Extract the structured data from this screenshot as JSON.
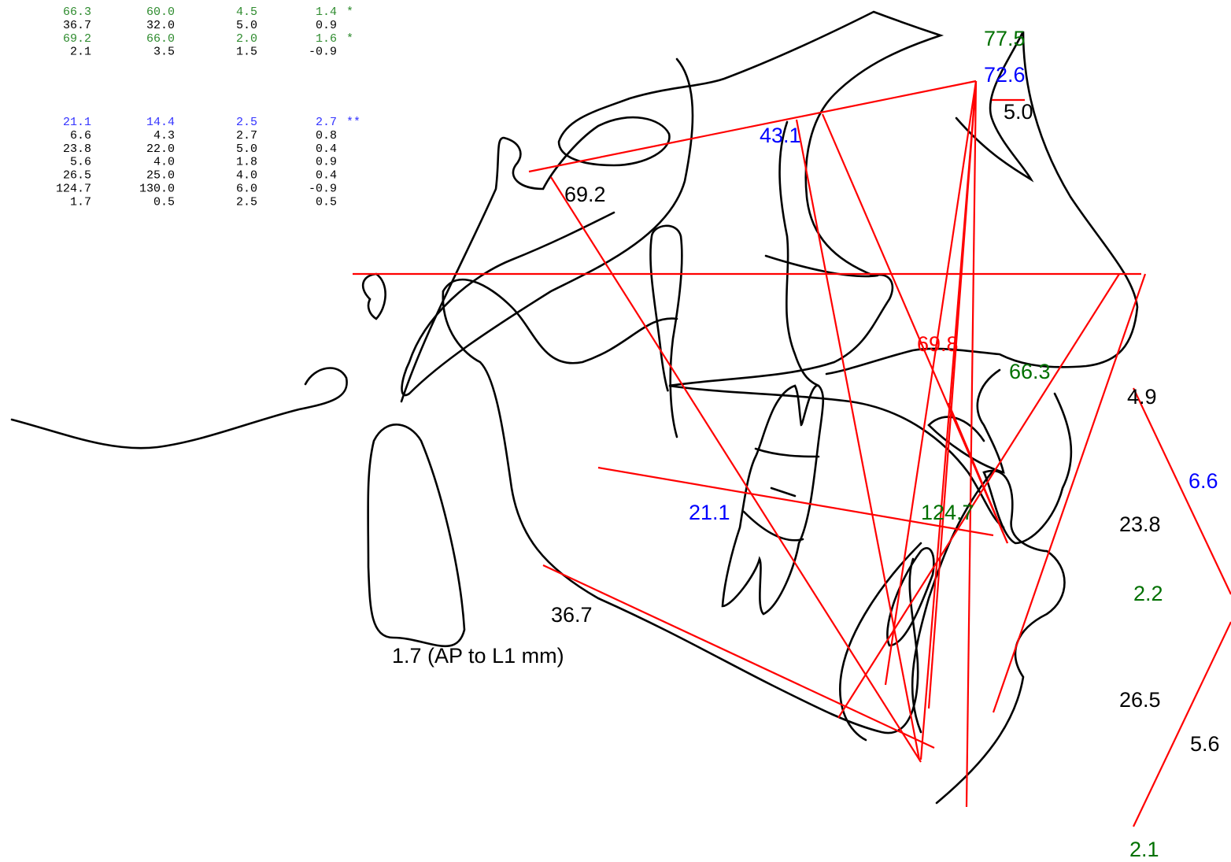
{
  "table": {
    "groups": [
      {
        "rows": [
          {
            "color": "#2e8b2e",
            "cells": [
              "66.3",
              "60.0",
              "4.5",
              "1.4"
            ],
            "flag": "*"
          },
          {
            "color": "#000000",
            "cells": [
              "36.7",
              "32.0",
              "5.0",
              "0.9"
            ]
          },
          {
            "color": "#2e8b2e",
            "cells": [
              "69.2",
              "66.0",
              "2.0",
              "1.6"
            ],
            "flag": "*"
          },
          {
            "color": "#000000",
            "cells": [
              "2.1",
              "3.5",
              "1.5",
              "-0.9"
            ]
          }
        ]
      },
      {
        "rows": [
          {
            "color": "#3333ff",
            "cells": [
              "21.1",
              "14.4",
              "2.5",
              "2.7"
            ],
            "flag": "**"
          },
          {
            "color": "#000000",
            "cells": [
              "6.6",
              "4.3",
              "2.7",
              "0.8"
            ]
          },
          {
            "color": "#000000",
            "cells": [
              "23.8",
              "22.0",
              "5.0",
              "0.4"
            ]
          },
          {
            "color": "#000000",
            "cells": [
              "5.6",
              "4.0",
              "1.8",
              "0.9"
            ]
          },
          {
            "color": "#000000",
            "cells": [
              "26.5",
              "25.0",
              "4.0",
              "0.4"
            ]
          },
          {
            "color": "#000000",
            "cells": [
              "124.7",
              "130.0",
              "6.0",
              "-0.9"
            ]
          },
          {
            "color": "#000000",
            "cells": [
              "1.7",
              "0.5",
              "2.5",
              "0.5"
            ]
          }
        ]
      }
    ]
  },
  "labels": [
    {
      "text": "77.5",
      "color": "#007000"
    },
    {
      "text": "72.6",
      "color": "#0000ff"
    },
    {
      "text": "5.0",
      "color": "#000000"
    },
    {
      "text": "43.1",
      "color": "#0000ff"
    },
    {
      "text": "69.2",
      "color": "#000000"
    },
    {
      "text": "69.8",
      "color": "#ff0000"
    },
    {
      "text": "66.3",
      "color": "#007000"
    },
    {
      "text": "4.9",
      "color": "#000000"
    },
    {
      "text": "6.6",
      "color": "#0000ff"
    },
    {
      "text": "23.8",
      "color": "#000000"
    },
    {
      "text": "21.1",
      "color": "#0000ff"
    },
    {
      "text": "124.7",
      "color": "#007000"
    },
    {
      "text": "2.2",
      "color": "#007000"
    },
    {
      "text": "36.7",
      "color": "#000000"
    },
    {
      "text": "1.7 (AP to L1 mm)",
      "color": "#000000"
    },
    {
      "text": "26.5",
      "color": "#000000"
    },
    {
      "text": "5.6",
      "color": "#000000"
    },
    {
      "text": "2.1",
      "color": "#007000"
    }
  ]
}
